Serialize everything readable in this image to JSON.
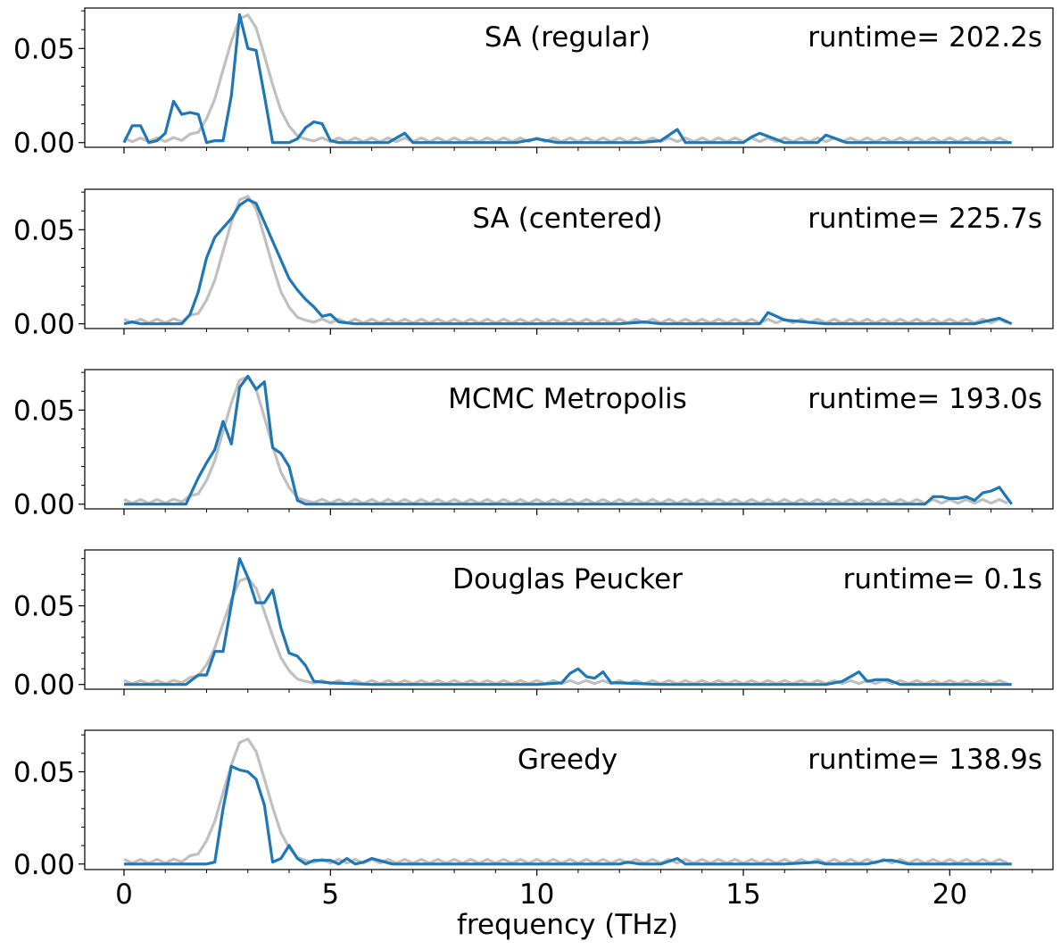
{
  "chart_data": {
    "type": "line",
    "shared_x": {
      "label": "frequency (THz)",
      "range": [
        -0.95,
        22.5
      ],
      "major_ticks": [
        0,
        5,
        10,
        15,
        20
      ],
      "tick_labels": [
        "0",
        "5",
        "10",
        "15",
        "20"
      ],
      "minor_step": 1
    },
    "colors": {
      "reference": "#c0c0c0",
      "approximation": "#1f77b4"
    },
    "panels": [
      {
        "method": "SA (regular)",
        "runtime": "runtime= 202.2s",
        "y_tick_labels": [
          "0.00",
          "0.05"
        ],
        "y_ticks": [
          0.0,
          0.05
        ],
        "ylim": [
          -0.0025,
          0.0715
        ],
        "series": {
          "x": [
            0,
            0.2,
            0.4,
            0.6,
            0.8,
            1.0,
            1.2,
            1.4,
            1.6,
            1.8,
            2.0,
            2.2,
            2.4,
            2.6,
            2.8,
            3.0,
            3.2,
            3.4,
            3.6,
            3.8,
            4.0,
            4.2,
            4.4,
            4.6,
            4.8,
            5.0,
            5.2,
            5.4,
            5.6,
            6.0,
            6.4,
            6.8,
            7.0,
            7.2,
            7.5,
            8.0,
            8.5,
            9.0,
            9.5,
            10.0,
            10.5,
            11.0,
            11.5,
            12.0,
            12.5,
            13.0,
            13.2,
            13.4,
            13.6,
            14.0,
            14.5,
            15.0,
            15.2,
            15.4,
            16.0,
            16.5,
            16.8,
            17.0,
            17.5,
            18.0,
            18.5,
            19.0,
            19.5,
            20.0,
            20.5,
            21.0,
            21.5
          ],
          "y": [
            0.0,
            0.009,
            0.009,
            0.0,
            0.001,
            0.005,
            0.022,
            0.015,
            0.016,
            0.015,
            0.0,
            0.001,
            0.001,
            0.025,
            0.068,
            0.05,
            0.049,
            0.025,
            0.0,
            0.0,
            0.0,
            0.002,
            0.008,
            0.011,
            0.01,
            0.001,
            0.0,
            0.0,
            0.0,
            0.0,
            0.0,
            0.005,
            0.0,
            0.0,
            0.0,
            0.0,
            0.0,
            0.0,
            0.0,
            0.002,
            0.0,
            0.0,
            0.0,
            0.0,
            0.0,
            0.001,
            0.004,
            0.007,
            0.0,
            0.0,
            0.0,
            0.0,
            0.003,
            0.005,
            0.0,
            0.0,
            0.0,
            0.004,
            0.0,
            0.0,
            0.0,
            0.0,
            0.0,
            0.0,
            0.0,
            0.0,
            0.0
          ]
        }
      },
      {
        "method": "SA (centered)",
        "runtime": "runtime= 225.7s",
        "y_tick_labels": [
          "0.00",
          "0.05"
        ],
        "y_ticks": [
          0.0,
          0.05
        ],
        "ylim": [
          -0.0025,
          0.0715
        ],
        "series": {
          "x": [
            0,
            0.2,
            0.4,
            0.6,
            0.8,
            1.0,
            1.2,
            1.4,
            1.6,
            1.8,
            2.0,
            2.2,
            2.4,
            2.6,
            2.8,
            3.0,
            3.2,
            3.4,
            3.6,
            3.8,
            4.0,
            4.2,
            4.4,
            4.6,
            4.8,
            5.0,
            5.2,
            5.6,
            6.0,
            7.0,
            8.0,
            9.0,
            10.0,
            11.0,
            12.0,
            12.6,
            13.0,
            14.0,
            15.0,
            15.4,
            15.6,
            16.0,
            17.0,
            18.0,
            19.0,
            20.0,
            20.6,
            21.2,
            21.5
          ],
          "y": [
            0.0,
            0.001,
            0.0,
            0.0,
            0.0,
            0.0,
            0.0,
            0.0,
            0.005,
            0.017,
            0.035,
            0.046,
            0.051,
            0.056,
            0.063,
            0.066,
            0.064,
            0.054,
            0.044,
            0.034,
            0.024,
            0.018,
            0.013,
            0.009,
            0.004,
            0.005,
            0.001,
            0.0,
            0.0,
            0.0,
            0.0,
            0.0,
            0.0,
            0.0,
            0.0,
            0.001,
            0.0,
            0.0,
            0.0,
            0.0,
            0.006,
            0.002,
            0.0,
            0.0,
            0.0,
            0.0,
            0.0,
            0.003,
            0.0
          ]
        }
      },
      {
        "method": "MCMC Metropolis",
        "runtime": "runtime= 193.0s",
        "y_tick_labels": [
          "0.00",
          "0.05"
        ],
        "y_ticks": [
          0.0,
          0.05
        ],
        "ylim": [
          -0.0025,
          0.0715
        ],
        "series": {
          "x": [
            0,
            0.5,
            1.0,
            1.5,
            1.8,
            2.0,
            2.2,
            2.4,
            2.6,
            2.8,
            3.0,
            3.2,
            3.4,
            3.6,
            3.8,
            4.0,
            4.2,
            4.4,
            5.0,
            10.0,
            15.0,
            19.4,
            19.6,
            19.8,
            20.0,
            20.2,
            20.4,
            20.6,
            20.8,
            21.0,
            21.2,
            21.5
          ],
          "y": [
            0.0,
            0.0,
            0.0,
            0.0,
            0.014,
            0.022,
            0.029,
            0.044,
            0.032,
            0.062,
            0.068,
            0.061,
            0.065,
            0.03,
            0.027,
            0.02,
            0.002,
            0.0,
            0.0,
            0.0,
            0.0,
            0.0,
            0.004,
            0.004,
            0.003,
            0.003,
            0.004,
            0.002,
            0.006,
            0.007,
            0.009,
            0.0
          ]
        }
      },
      {
        "method": "Douglas Peucker",
        "runtime": "runtime= 0.1s",
        "y_tick_labels": [
          "0.00",
          "0.05"
        ],
        "y_ticks": [
          0.0,
          0.05
        ],
        "ylim": [
          -0.003,
          0.0855
        ],
        "series": {
          "x": [
            0,
            0.5,
            1.0,
            1.5,
            1.8,
            2.0,
            2.2,
            2.4,
            2.6,
            2.8,
            3.0,
            3.2,
            3.4,
            3.6,
            3.8,
            4.0,
            4.2,
            4.4,
            4.6,
            5.0,
            6.0,
            7.0,
            8.0,
            9.0,
            10.0,
            10.6,
            10.8,
            11.0,
            11.2,
            11.4,
            11.6,
            11.8,
            12.0,
            13.0,
            14.0,
            15.0,
            16.0,
            17.0,
            17.4,
            17.8,
            18.0,
            18.2,
            18.5,
            18.8,
            19.0,
            20.0,
            21.0,
            21.5
          ],
          "y": [
            0.0,
            0.0,
            0.0,
            0.0,
            0.006,
            0.006,
            0.021,
            0.021,
            0.051,
            0.08,
            0.068,
            0.052,
            0.052,
            0.06,
            0.036,
            0.02,
            0.018,
            0.012,
            0.002,
            0.001,
            0.0,
            0.0,
            0.0,
            0.0,
            0.0,
            0.001,
            0.007,
            0.01,
            0.005,
            0.004,
            0.008,
            0.001,
            0.001,
            0.0,
            0.0,
            0.0,
            0.0,
            0.0,
            0.002,
            0.008,
            0.002,
            0.003,
            0.003,
            0.0,
            0.0,
            0.0,
            0.0,
            0.0
          ]
        }
      },
      {
        "method": "Greedy",
        "runtime": "runtime= 138.9s",
        "y_tick_labels": [
          "0.00",
          "0.05"
        ],
        "y_ticks": [
          0.0,
          0.05
        ],
        "ylim": [
          -0.003,
          0.0725
        ],
        "series": {
          "x": [
            0,
            0.5,
            1.0,
            1.5,
            2.0,
            2.2,
            2.4,
            2.6,
            2.8,
            3.0,
            3.2,
            3.4,
            3.6,
            3.8,
            4.0,
            4.2,
            4.4,
            4.6,
            4.8,
            5.0,
            5.2,
            5.4,
            5.6,
            5.8,
            6.0,
            6.5,
            7.0,
            8.0,
            9.0,
            10.0,
            11.0,
            12.0,
            12.2,
            12.5,
            13.0,
            13.4,
            13.6,
            14.0,
            15.0,
            16.0,
            16.8,
            17.0,
            18.0,
            18.4,
            18.6,
            18.8,
            19.0,
            20.0,
            21.0,
            21.5
          ],
          "y": [
            0.0,
            0.0,
            0.0,
            0.0,
            0.0,
            0.001,
            0.03,
            0.053,
            0.051,
            0.05,
            0.046,
            0.032,
            0.001,
            0.003,
            0.01,
            0.003,
            0.0,
            0.002,
            0.002,
            0.002,
            0.0,
            0.003,
            0.0,
            0.001,
            0.003,
            0.0,
            0.0,
            0.0,
            0.0,
            0.0,
            0.0,
            0.0,
            0.001,
            0.0,
            0.0,
            0.003,
            0.0,
            0.0,
            0.0,
            0.0,
            0.001,
            0.0,
            0.0,
            0.002,
            0.002,
            0.001,
            0.0,
            0.0,
            0.0,
            0.0
          ]
        }
      }
    ]
  }
}
